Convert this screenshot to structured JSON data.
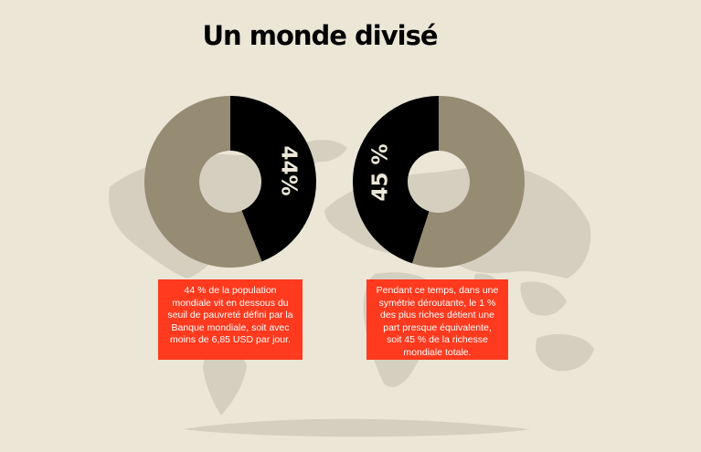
{
  "title": "Un monde divisé",
  "colors": {
    "background": "#ebe6d6",
    "highlight": "#000000",
    "remainder": "#968b73",
    "caption_bg": "#ff3a1e",
    "caption_text": "#ffffff",
    "map": "#d5cfbf"
  },
  "chart_data": [
    {
      "type": "pie",
      "values": [
        44,
        56
      ],
      "highlight_index": 0,
      "data_label": "44%",
      "caption": "44 % de la population mondiale vit en dessous du seuil de pauvreté défini par la Banque mondiale, soit avec moins de 6,85 USD par jour."
    },
    {
      "type": "pie",
      "values": [
        45,
        55
      ],
      "highlight_index": 0,
      "data_label": "45 %",
      "caption": "Pendant ce temps, dans une symétrie déroutante, le 1 % des plus riches détient une part presque équivalente, soit 45 % de la richesse mondiale totale."
    }
  ]
}
